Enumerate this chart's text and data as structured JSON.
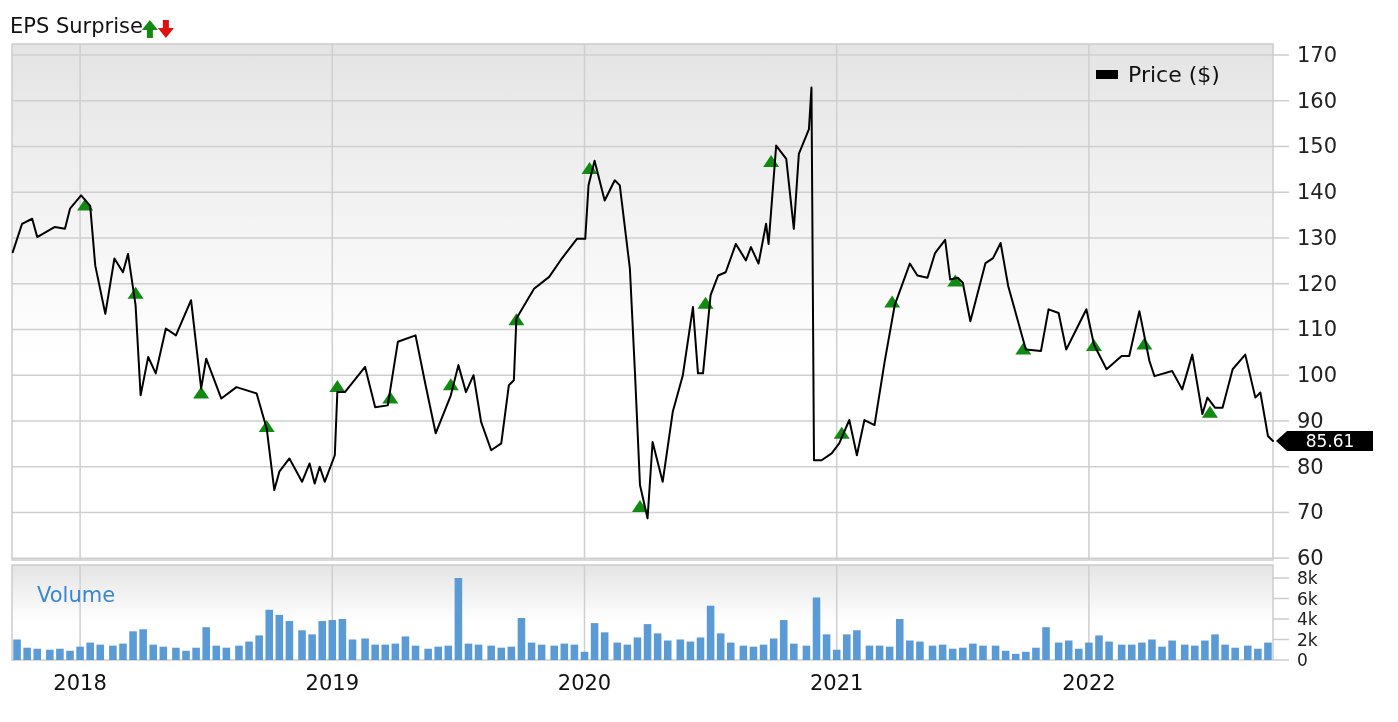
{
  "chart_data": [
    {
      "type": "line",
      "title": "EPS Surprise",
      "xlim": [
        2017.73,
        2022.73
      ],
      "xticks": [
        2018,
        2019,
        2020,
        2021,
        2022
      ],
      "ylim": [
        59.6,
        172.4
      ],
      "yticks": [
        60,
        70,
        80,
        90,
        100,
        110,
        120,
        130,
        140,
        150,
        160,
        170
      ],
      "grid": true,
      "tick_labels": "y",
      "legend": "top right",
      "annotations": [
        {
          "text": "85.61",
          "x": 2022.73,
          "y": 85.61
        }
      ],
      "series": [
        {
          "name": "Price ($)",
          "color": "#000000",
          "x": [
            2017.733,
            2017.77,
            2017.81,
            2017.83,
            2017.9,
            2017.94,
            2017.96,
            2018.004,
            2018.04,
            2018.06,
            2018.1,
            2018.136,
            2018.17,
            2018.19,
            2018.22,
            2018.24,
            2018.27,
            2018.3,
            2018.34,
            2018.38,
            2018.44,
            2018.48,
            2018.5,
            2018.56,
            2018.62,
            2018.7,
            2018.74,
            2018.77,
            2018.79,
            2018.83,
            2018.88,
            2018.91,
            2018.93,
            2018.95,
            2018.97,
            2019.01,
            2019.02,
            2019.05,
            2019.13,
            2019.17,
            2019.22,
            2019.26,
            2019.33,
            2019.37,
            2019.41,
            2019.47,
            2019.5,
            2019.53,
            2019.56,
            2019.59,
            2019.63,
            2019.67,
            2019.7,
            2019.72,
            2019.73,
            2019.8,
            2019.86,
            2019.91,
            2019.97,
            2020.003,
            2020.016,
            2020.04,
            2020.08,
            2020.12,
            2020.14,
            2020.18,
            2020.2,
            2020.22,
            2020.25,
            2020.27,
            2020.31,
            2020.35,
            2020.39,
            2020.43,
            2020.45,
            2020.47,
            2020.5,
            2020.53,
            2020.56,
            2020.6,
            2020.64,
            2020.66,
            2020.69,
            2020.72,
            2020.73,
            2020.76,
            2020.8,
            2020.83,
            2020.85,
            2020.89,
            2020.9,
            2020.91,
            2020.94,
            2020.98,
            2021.01,
            2021.05,
            2021.08,
            2021.11,
            2021.15,
            2021.19,
            2021.23,
            2021.29,
            2021.32,
            2021.36,
            2021.39,
            2021.43,
            2021.45,
            2021.48,
            2021.5,
            2021.53,
            2021.59,
            2021.62,
            2021.65,
            2021.68,
            2021.75,
            2021.81,
            2021.84,
            2021.88,
            2021.91,
            2021.94,
            2021.99,
            2022.02,
            2022.07,
            2022.13,
            2022.16,
            2022.2,
            2022.24,
            2022.26,
            2022.33,
            2022.37,
            2022.41,
            2022.45,
            2022.47,
            2022.5,
            2022.53,
            2022.57,
            2022.62,
            2022.66,
            2022.68,
            2022.71,
            2022.73
          ],
          "values": [
            126.9,
            133.1,
            134.2,
            130.2,
            132.4,
            132,
            136.4,
            139.3,
            137,
            124,
            113.4,
            125.5,
            122.5,
            126.5,
            115.3,
            95.6,
            104,
            100.4,
            110.2,
            108.7,
            116.4,
            97.1,
            103.6,
            94.9,
            97.4,
            96,
            88.3,
            74.9,
            78.9,
            81.8,
            76.7,
            80.7,
            76.3,
            80,
            76.7,
            82.5,
            96.3,
            96.3,
            101.8,
            93,
            93.4,
            107.3,
            108.7,
            97.8,
            87.3,
            95.6,
            102.2,
            96.3,
            100,
            89.8,
            83.6,
            85.1,
            97.8,
            98.9,
            112.4,
            118.9,
            121.5,
            125.5,
            129.8,
            129.8,
            141.5,
            146.9,
            138.2,
            142.6,
            141.5,
            123.3,
            100.7,
            76,
            68.7,
            85.4,
            76.7,
            92,
            100,
            114.9,
            100.4,
            100.4,
            117.5,
            121.8,
            122.5,
            128.7,
            125.1,
            128,
            124.4,
            133.1,
            128.7,
            150.2,
            147.3,
            132,
            148.4,
            153.8,
            162.9,
            81.4,
            81.4,
            82.9,
            85.1,
            90.2,
            82.5,
            90.2,
            89.1,
            102.9,
            115.3,
            124.4,
            121.8,
            121.3,
            126.7,
            129.6,
            120.9,
            121.3,
            120.2,
            111.8,
            124.5,
            125.6,
            128.9,
            119.5,
            105.6,
            105.3,
            114.4,
            113.6,
            105.6,
            108.9,
            114.4,
            106.7,
            101.3,
            104.2,
            104.2,
            114,
            103.1,
            99.8,
            100.9,
            96.9,
            104.5,
            91.5,
            95.1,
            92.9,
            92.9,
            101.3,
            104.5,
            95.1,
            96.2,
            86.7,
            85.61
          ]
        },
        {
          "type": "scatter",
          "marker": "triangle",
          "color": "#118a11",
          "x": [
            2018.02,
            2018.22,
            2018.48,
            2018.74,
            2019.02,
            2019.23,
            2019.47,
            2019.73,
            2020.02,
            2020.22,
            2020.48,
            2020.74,
            2021.02,
            2021.22,
            2021.47,
            2021.74,
            2022.02,
            2022.22,
            2022.48
          ],
          "values": [
            137.1,
            117.8,
            96,
            88.7,
            97.4,
            94.9,
            97.8,
            112,
            145.1,
            71.2,
            115.6,
            146.6,
            87.2,
            115.9,
            120.5,
            105.6,
            106.4,
            106.7,
            91.8
          ]
        }
      ]
    },
    {
      "type": "bar",
      "ylabel": "Volume",
      "color": "#5b9bd5",
      "xlim": [
        2017.73,
        2022.73
      ],
      "xticks": [
        2018,
        2019,
        2020,
        2021,
        2022
      ],
      "ylim": [
        0,
        9270
      ],
      "yticks": [
        0,
        {
          "value": 2000,
          "label": "2k"
        },
        {
          "value": 4000,
          "label": "4k"
        },
        {
          "value": 6000,
          "label": "6k"
        },
        {
          "value": 8000,
          "label": "8k"
        }
      ],
      "grid": "x",
      "x": [
        2017.75,
        2017.79,
        2017.83,
        2017.88,
        2017.92,
        2017.96,
        2018.0,
        2018.04,
        2018.08,
        2018.13,
        2018.17,
        2018.21,
        2018.25,
        2018.29,
        2018.33,
        2018.38,
        2018.42,
        2018.46,
        2018.5,
        2018.54,
        2018.58,
        2018.63,
        2018.67,
        2018.71,
        2018.75,
        2018.79,
        2018.83,
        2018.88,
        2018.92,
        2018.96,
        2019.0,
        2019.04,
        2019.08,
        2019.13,
        2019.17,
        2019.21,
        2019.25,
        2019.29,
        2019.33,
        2019.38,
        2019.42,
        2019.46,
        2019.5,
        2019.54,
        2019.58,
        2019.63,
        2019.67,
        2019.71,
        2019.75,
        2019.79,
        2019.83,
        2019.88,
        2019.92,
        2019.96,
        2020.0,
        2020.04,
        2020.08,
        2020.13,
        2020.17,
        2020.21,
        2020.25,
        2020.29,
        2020.33,
        2020.38,
        2020.42,
        2020.46,
        2020.5,
        2020.54,
        2020.58,
        2020.63,
        2020.67,
        2020.71,
        2020.75,
        2020.79,
        2020.83,
        2020.88,
        2020.92,
        2020.96,
        2021.0,
        2021.04,
        2021.08,
        2021.13,
        2021.17,
        2021.21,
        2021.25,
        2021.29,
        2021.33,
        2021.38,
        2021.42,
        2021.46,
        2021.5,
        2021.54,
        2021.58,
        2021.63,
        2021.67,
        2021.71,
        2021.75,
        2021.79,
        2021.83,
        2021.88,
        2021.92,
        2021.96,
        2022.0,
        2022.04,
        2022.08,
        2022.13,
        2022.17,
        2022.21,
        2022.25,
        2022.29,
        2022.33,
        2022.38,
        2022.42,
        2022.46,
        2022.5,
        2022.54,
        2022.58,
        2022.63,
        2022.67,
        2022.71
      ],
      "values": [
        2000,
        1200,
        1100,
        1000,
        1100,
        900,
        1300,
        1700,
        1500,
        1400,
        1600,
        2800,
        3000,
        1500,
        1300,
        1200,
        900,
        1200,
        3200,
        1400,
        1200,
        1400,
        1800,
        2400,
        4900,
        4400,
        3800,
        2900,
        2500,
        3800,
        3900,
        4000,
        2000,
        2100,
        1500,
        1500,
        1600,
        2300,
        1400,
        1100,
        1300,
        1400,
        8000,
        1600,
        1500,
        1400,
        1200,
        1300,
        4100,
        1700,
        1500,
        1400,
        1600,
        1500,
        800,
        3600,
        2700,
        1700,
        1500,
        2200,
        3500,
        2600,
        1900,
        2000,
        1800,
        2200,
        5300,
        2600,
        1700,
        1400,
        1300,
        1500,
        2100,
        3900,
        1600,
        1400,
        6100,
        2500,
        1000,
        2500,
        2900,
        1400,
        1400,
        1300,
        4000,
        1900,
        1800,
        1400,
        1500,
        1100,
        1200,
        1600,
        1400,
        1400,
        900,
        600,
        800,
        1200,
        3200,
        1700,
        1900,
        1100,
        1700,
        2400,
        1800,
        1500,
        1500,
        1700,
        2000,
        1300,
        1900,
        1500,
        1400,
        1900,
        2500,
        1500,
        1200,
        1400,
        1100,
        1700
      ]
    }
  ]
}
